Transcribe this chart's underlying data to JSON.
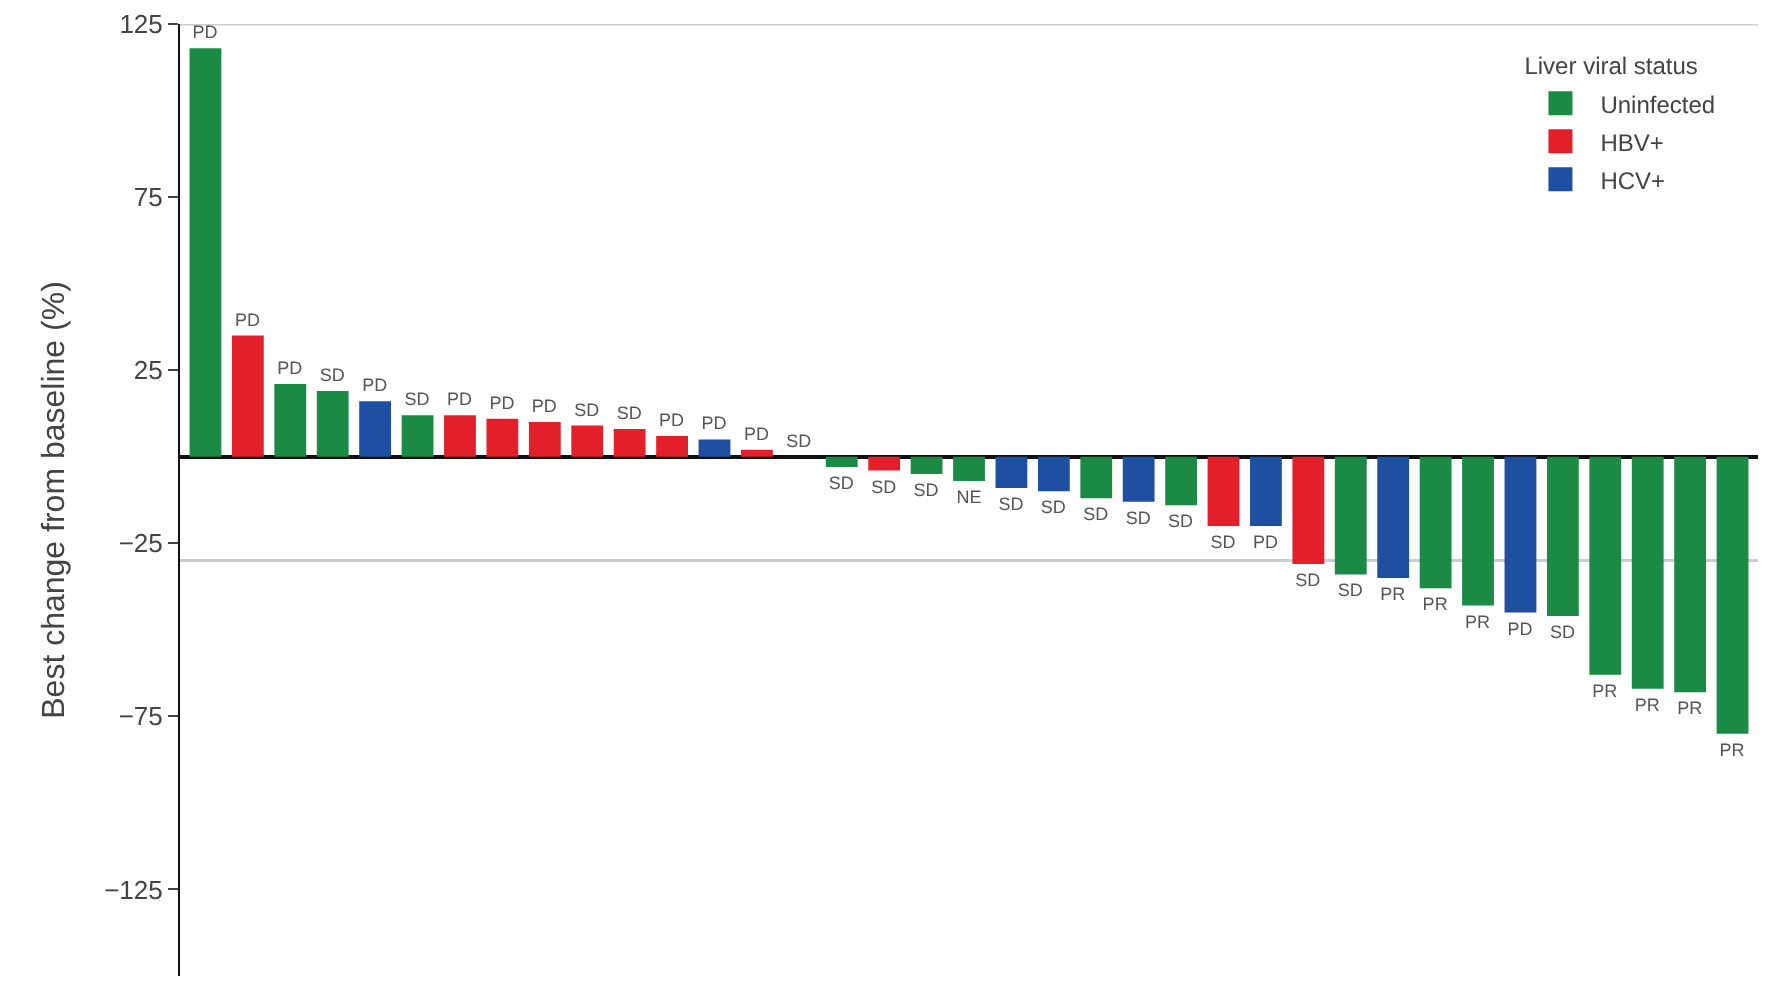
{
  "chart_data": {
    "type": "bar",
    "ylabel": "Best change from baseline (%)",
    "legend_title": "Liver viral status",
    "categories": [
      null,
      null,
      null,
      null,
      null,
      null,
      null,
      null,
      null,
      null,
      null,
      null,
      null,
      null,
      null,
      null,
      null,
      null,
      null,
      null,
      null,
      null,
      null,
      null,
      null,
      null,
      null,
      null,
      null,
      null,
      null,
      null,
      null,
      null,
      null,
      null,
      null
    ],
    "series": [
      {
        "name": "Uninfected",
        "color": "#1a8a44",
        "values": [
          118,
          null,
          21,
          19,
          null,
          12,
          null,
          null,
          null,
          null,
          null,
          null,
          null,
          null,
          0,
          -3,
          null,
          -5,
          -7,
          null,
          null,
          -12,
          null,
          -14,
          null,
          null,
          null,
          -34,
          null,
          -38,
          -43,
          null,
          -46,
          -63,
          -67,
          -68,
          -80
        ]
      },
      {
        "name": "HBV+",
        "color": "#e3202a",
        "values": [
          null,
          35,
          null,
          null,
          null,
          null,
          12,
          11,
          10,
          9,
          8,
          6,
          null,
          2,
          null,
          null,
          -4,
          null,
          null,
          null,
          null,
          null,
          null,
          null,
          -20,
          null,
          -31,
          null,
          null,
          null,
          null,
          null,
          null,
          null,
          null,
          null,
          null
        ]
      },
      {
        "name": "HCV+",
        "color": "#1f4fa0",
        "values": [
          null,
          null,
          null,
          null,
          16,
          null,
          null,
          null,
          null,
          null,
          null,
          null,
          5,
          null,
          null,
          null,
          null,
          null,
          null,
          -9,
          -10,
          null,
          -13,
          null,
          null,
          -20,
          null,
          null,
          -35,
          null,
          null,
          -45,
          null,
          null,
          null,
          null,
          null
        ]
      }
    ],
    "value_labels": [
      "PD",
      "PD",
      "PD",
      "SD",
      "PD",
      "SD",
      "PD",
      "PD",
      "PD",
      "SD",
      "SD",
      "PD",
      "PD",
      "PD",
      "SD",
      "SD",
      "SD",
      "SD",
      "NE",
      "SD",
      "SD",
      "SD",
      "SD",
      "SD",
      "SD",
      "PD",
      "SD",
      "SD",
      "PR",
      "PR",
      "PR",
      "PD",
      "SD",
      "PR",
      "PR",
      "PR",
      "PR"
    ],
    "ylim": [
      -150,
      125
    ],
    "yticks": [
      125,
      75,
      25,
      -25,
      -75,
      -125
    ],
    "ref_lines": [
      {
        "axis": "y",
        "value": 125,
        "color": "#cccccc"
      },
      {
        "axis": "y",
        "value": -30,
        "color": "#cccccc"
      }
    ],
    "legend": "top right"
  }
}
